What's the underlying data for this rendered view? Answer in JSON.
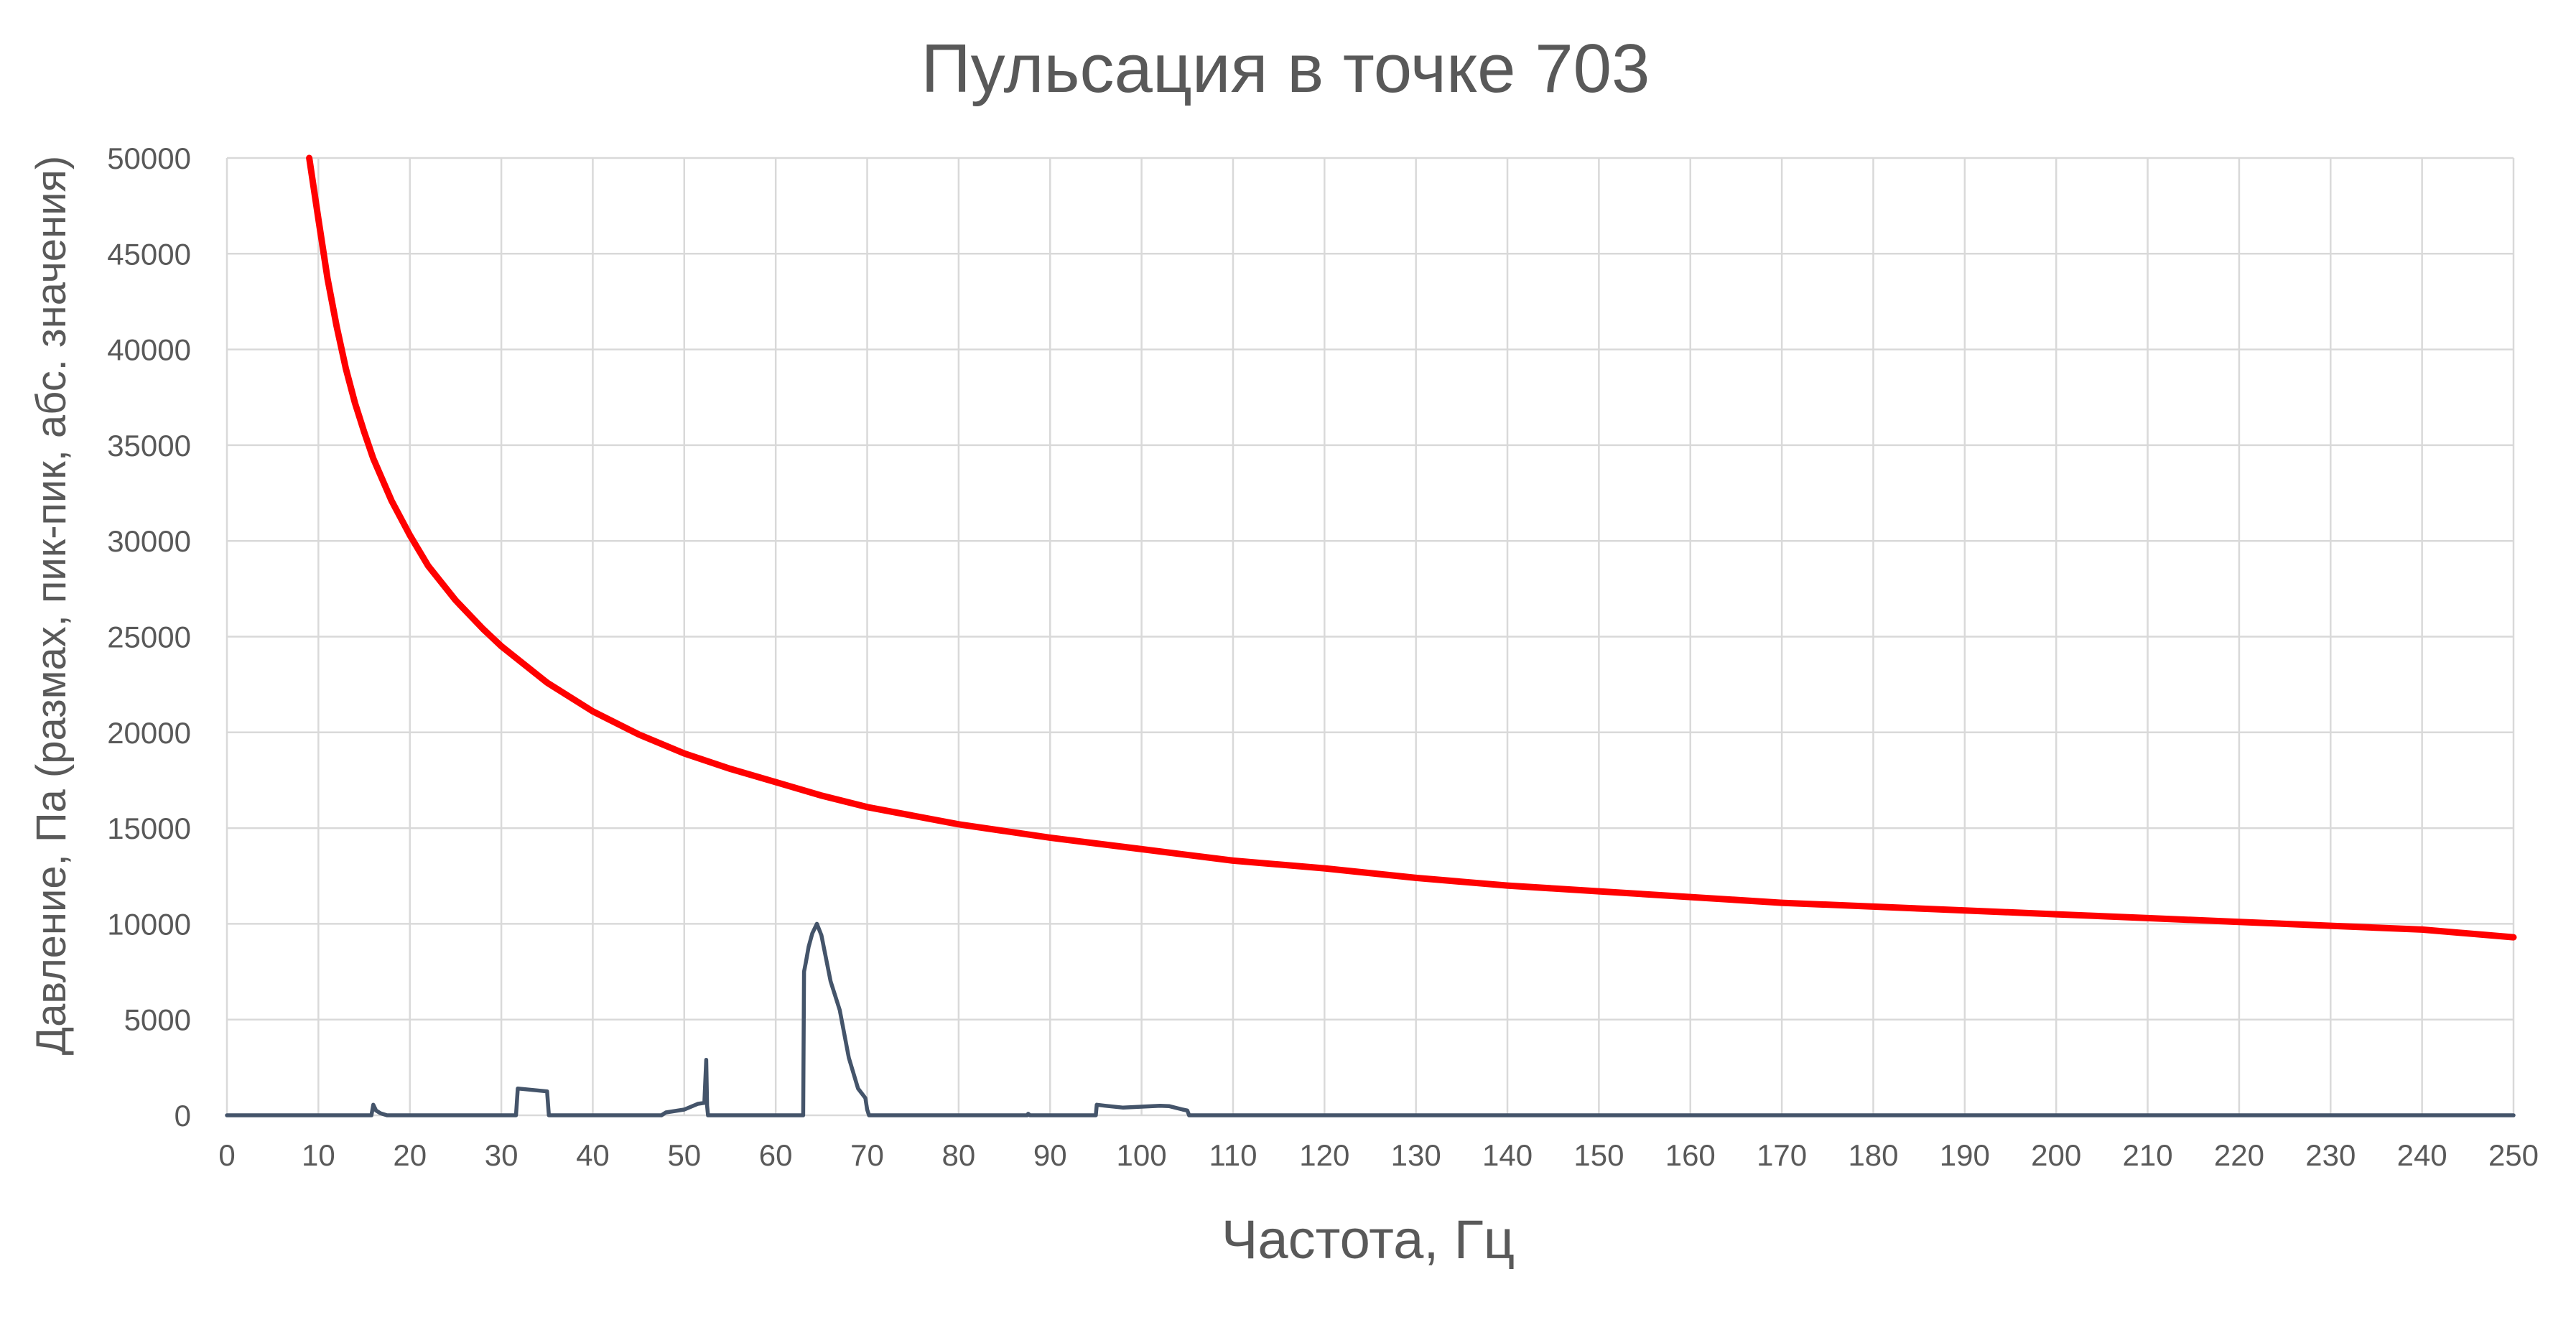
{
  "chart_data": {
    "type": "line",
    "title": "Пульсация в точке 703",
    "xlabel": "Частота, Гц",
    "ylabel": "Давление, Па (размах, пик-пик, абс. значения)",
    "xlim": [
      0,
      250
    ],
    "ylim": [
      0,
      50000
    ],
    "x_ticks": [
      "0",
      "10",
      "20",
      "30",
      "40",
      "50",
      "60",
      "70",
      "80",
      "90",
      "100",
      "110",
      "120",
      "130",
      "140",
      "150",
      "160",
      "170",
      "180",
      "190",
      "200",
      "210",
      "220",
      "230",
      "240",
      "250"
    ],
    "y_ticks": [
      "0",
      "5000",
      "10000",
      "15000",
      "20000",
      "25000",
      "30000",
      "35000",
      "40000",
      "45000",
      "50000"
    ],
    "grid": true,
    "legend": "none",
    "series": [
      {
        "color": "#ff0000",
        "x": [
          9,
          10,
          11,
          12,
          13,
          14,
          15,
          16,
          18,
          20,
          22,
          25,
          28,
          30,
          35,
          40,
          45,
          50,
          55,
          60,
          65,
          70,
          80,
          90,
          100,
          110,
          120,
          130,
          140,
          150,
          160,
          170,
          180,
          190,
          200,
          210,
          220,
          230,
          240,
          250
        ],
        "y": [
          50000,
          46800,
          43700,
          41200,
          39000,
          37200,
          35700,
          34300,
          32100,
          30300,
          28700,
          26900,
          25400,
          24500,
          22600,
          21100,
          19900,
          18900,
          18100,
          17400,
          16700,
          16100,
          15200,
          14500,
          13900,
          13300,
          12900,
          12400,
          12000,
          11700,
          11400,
          11100,
          10900,
          10700,
          10500,
          10300,
          10100,
          9900,
          9700,
          9300
        ]
      },
      {
        "color": "#44546a",
        "x": [
          0,
          15.8,
          16,
          16.3,
          16.8,
          17.5,
          17.9,
          31.6,
          31.8,
          35.0,
          35.2,
          47.5,
          48.0,
          50.0,
          51.5,
          52.2,
          52.4,
          52.5,
          52.6,
          63.0,
          63.1,
          63.3,
          63.6,
          64.0,
          64.5,
          65.0,
          66.0,
          67.0,
          68.0,
          69.0,
          69.8,
          70.0,
          70.2,
          87.5,
          87.6,
          87.8,
          95.0,
          95.1,
          96.0,
          98.0,
          100.0,
          102.0,
          103.0,
          104.5,
          105.0,
          105.2,
          250
        ],
        "y": [
          0,
          0,
          550,
          250,
          100,
          0,
          0,
          0,
          1400,
          1250,
          0,
          0,
          150,
          300,
          600,
          650,
          2900,
          500,
          0,
          0,
          7500,
          8000,
          8800,
          9500,
          10000,
          9400,
          7000,
          5500,
          3000,
          1400,
          900,
          300,
          0,
          0,
          80,
          0,
          0,
          550,
          500,
          400,
          450,
          500,
          480,
          300,
          250,
          0,
          0
        ]
      }
    ]
  }
}
